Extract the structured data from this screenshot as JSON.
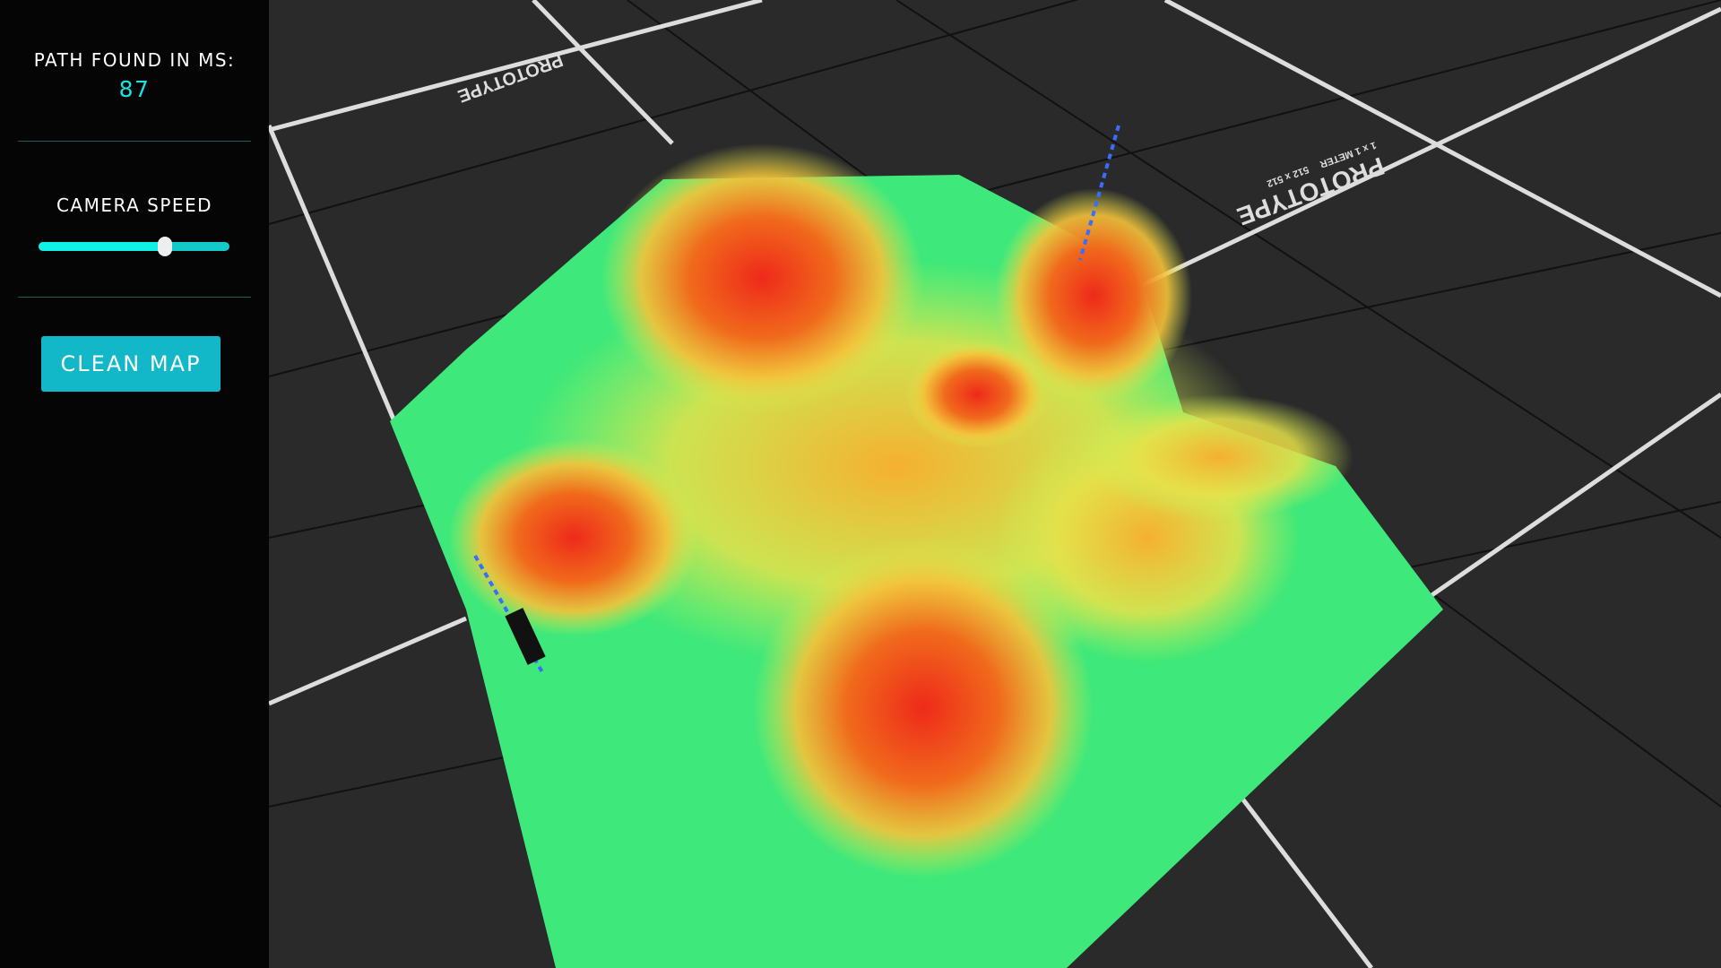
{
  "sidebar": {
    "path_label": "PATH FOUND IN MS:",
    "path_value": "87",
    "camera_speed_label": "CAMERA SPEED",
    "camera_speed_value": 0.66,
    "clean_map_label": "CLEAN MAP"
  },
  "scene": {
    "floor_texture_label": "PROTOTYPE",
    "floor_texture_sub1": "1 x 1 METER",
    "floor_texture_sub2": "512 x 512"
  },
  "colors": {
    "accent": "#13b8c8",
    "value": "#19e3e0",
    "low": "#3ee87a",
    "mid": "#f5d23a",
    "high": "#ee2a1a"
  }
}
